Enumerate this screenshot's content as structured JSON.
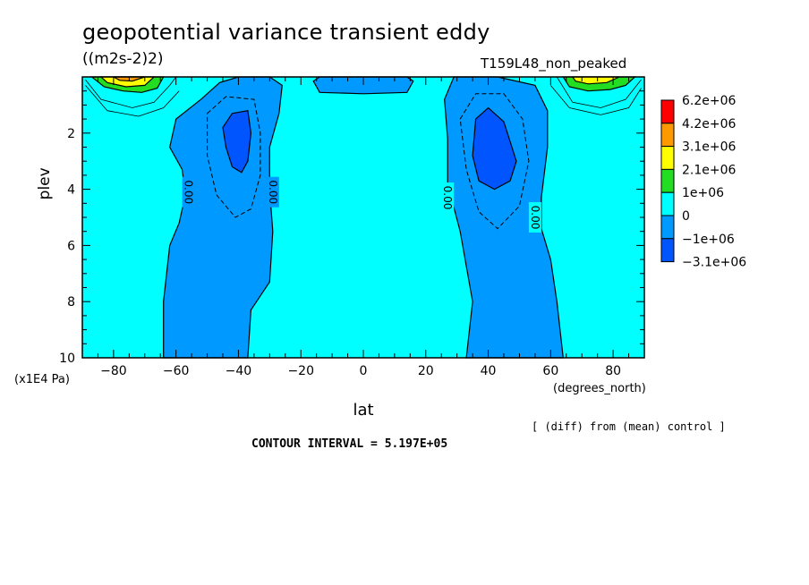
{
  "header": {
    "title": "geopotential variance transient eddy",
    "units": "((m2s-2)2)",
    "run_id": "T159L48_non_peaked"
  },
  "footer": {
    "diff_note": "[ (diff) from (mean) control ]",
    "contour_interval": "CONTOUR INTERVAL = 5.197E+05"
  },
  "chart_data": {
    "type": "heatmap",
    "xlabel": "lat",
    "xunit": "(degrees_north)",
    "ylabel": "plev",
    "yunit": "(x1E4 Pa)",
    "xlim": [
      -90,
      90
    ],
    "ylim": [
      10,
      0
    ],
    "xticks": [
      -80,
      -60,
      -40,
      -20,
      0,
      20,
      40,
      60,
      80
    ],
    "xticklabels": [
      "−80",
      "−60",
      "−40",
      "−20",
      "0",
      "20",
      "40",
      "60",
      "80"
    ],
    "yticks": [
      2,
      4,
      6,
      8,
      10
    ],
    "yticklabels": [
      "2",
      "4",
      "6",
      "8",
      "10"
    ],
    "contour_labels": [
      {
        "text": "0.00",
        "lat": -56,
        "plev": 4.1
      },
      {
        "text": "0.00",
        "lat": -29,
        "plev": 4.1
      },
      {
        "text": "0.00",
        "lat": 27,
        "plev": 4.3
      },
      {
        "text": "0.00",
        "lat": 55,
        "plev": 5.0
      }
    ],
    "colorbar": {
      "levels": [
        "6.2e+06",
        "4.2e+06",
        "3.1e+06",
        "2.1e+06",
        "1e+06",
        "0",
        "−1e+06",
        "−3.1e+06"
      ],
      "colors": [
        "#ff0000",
        "#ff9900",
        "#ffff00",
        "#22dd22",
        "#00ffff",
        "#0099ff",
        "#0055ff"
      ]
    },
    "regions": [
      {
        "name": "negative-band-south",
        "fill": "#0099ff",
        "level": "below 0",
        "outline": [
          [
            -64,
            10
          ],
          [
            -64,
            8
          ],
          [
            -62,
            6
          ],
          [
            -59,
            5.2
          ],
          [
            -57,
            4.2
          ],
          [
            -58,
            3.3
          ],
          [
            -62,
            2.5
          ],
          [
            -60,
            1.5
          ],
          [
            -52,
            0.8
          ],
          [
            -46,
            0.2
          ],
          [
            -40,
            0
          ],
          [
            -30,
            0
          ],
          [
            -26,
            0.3
          ],
          [
            -27,
            1.3
          ],
          [
            -30,
            2.5
          ],
          [
            -30,
            4
          ],
          [
            -29,
            5.5
          ],
          [
            -30,
            7.3
          ],
          [
            -36,
            8.3
          ],
          [
            -37,
            10
          ]
        ]
      },
      {
        "name": "negative-band-north",
        "fill": "#0099ff",
        "level": "below 0",
        "outline": [
          [
            33,
            10
          ],
          [
            35,
            8
          ],
          [
            31,
            5.5
          ],
          [
            27,
            3.8
          ],
          [
            27,
            2.2
          ],
          [
            26,
            0.8
          ],
          [
            29,
            0
          ],
          [
            43,
            0
          ],
          [
            55,
            0.3
          ],
          [
            59,
            1.2
          ],
          [
            59,
            2.5
          ],
          [
            57,
            4.3
          ],
          [
            57,
            5.4
          ],
          [
            60,
            6.5
          ],
          [
            62,
            8
          ],
          [
            64,
            10
          ]
        ]
      },
      {
        "name": "negative-patch-equator",
        "fill": "#0099ff",
        "level": "below 0",
        "outline": [
          [
            -16,
            0.15
          ],
          [
            -14,
            0
          ],
          [
            14,
            0
          ],
          [
            16,
            0.15
          ],
          [
            14,
            0.55
          ],
          [
            0,
            0.6
          ],
          [
            -14,
            0.55
          ]
        ]
      },
      {
        "name": "minimum-core-south",
        "fill": "#0055ff",
        "level": "below -1e+06",
        "outline": [
          [
            -42,
            1.3
          ],
          [
            -37,
            1.2
          ],
          [
            -36,
            2
          ],
          [
            -37,
            3
          ],
          [
            -39,
            3.4
          ],
          [
            -42,
            3.2
          ],
          [
            -44,
            2.5
          ],
          [
            -45,
            1.8
          ]
        ]
      },
      {
        "name": "minimum-core-north",
        "fill": "#0055ff",
        "level": "below -1e+06",
        "outline": [
          [
            36,
            1.5
          ],
          [
            40,
            1.1
          ],
          [
            45,
            1.6
          ],
          [
            49,
            3
          ],
          [
            47,
            3.7
          ],
          [
            42,
            4
          ],
          [
            37,
            3.7
          ],
          [
            35,
            2.8
          ]
        ]
      },
      {
        "name": "polar-maximum-south",
        "fill": "#22dd22",
        "level": "1e+06 to 2.1e+06",
        "outline": [
          [
            -87,
            0
          ],
          [
            -64,
            0
          ],
          [
            -66,
            0.4
          ],
          [
            -71,
            0.55
          ],
          [
            -77,
            0.5
          ],
          [
            -83,
            0.35
          ]
        ]
      },
      {
        "name": "polar-maximum-south-inner",
        "fill": "#ffff00",
        "level": "2.1e+06 to 3.1e+06",
        "outline": [
          [
            -84,
            0
          ],
          [
            -67,
            0
          ],
          [
            -70,
            0.3
          ],
          [
            -76,
            0.35
          ],
          [
            -82,
            0.2
          ]
        ]
      },
      {
        "name": "polar-maximum-south-core",
        "fill": "#ff9900",
        "level": "3.1e+06 to 4.2e+06",
        "outline": [
          [
            -80,
            0
          ],
          [
            -70,
            0
          ],
          [
            -74,
            0.15
          ],
          [
            -78,
            0.12
          ]
        ]
      },
      {
        "name": "polar-maximum-north",
        "fill": "#22dd22",
        "level": "1e+06 to 2.1e+06",
        "outline": [
          [
            64,
            0
          ],
          [
            87,
            0
          ],
          [
            84,
            0.3
          ],
          [
            79,
            0.45
          ],
          [
            72,
            0.5
          ],
          [
            66,
            0.35
          ]
        ]
      },
      {
        "name": "polar-maximum-north-core",
        "fill": "#ffff00",
        "level": "2.1e+06 to 3.1e+06",
        "outline": [
          [
            67,
            0
          ],
          [
            82,
            0
          ],
          [
            78,
            0.2
          ],
          [
            72,
            0.25
          ],
          [
            68,
            0.15
          ]
        ]
      }
    ],
    "dashed_contours": [
      {
        "name": "dashed-contour-south",
        "points": [
          [
            -50,
            1.3
          ],
          [
            -44,
            0.7
          ],
          [
            -35,
            0.8
          ],
          [
            -33,
            2
          ],
          [
            -33,
            3.5
          ],
          [
            -36,
            4.7
          ],
          [
            -41,
            5
          ],
          [
            -47,
            4.2
          ],
          [
            -50,
            2.8
          ]
        ]
      },
      {
        "name": "dashed-contour-north",
        "points": [
          [
            31,
            1.5
          ],
          [
            36,
            0.6
          ],
          [
            45,
            0.6
          ],
          [
            51,
            1.5
          ],
          [
            53,
            3
          ],
          [
            50,
            4.6
          ],
          [
            43,
            5.4
          ],
          [
            37,
            4.8
          ],
          [
            33,
            3.3
          ]
        ]
      }
    ],
    "thin_contours": [
      {
        "name": "thin-contour-south-1",
        "points": [
          [
            -89,
            0.1
          ],
          [
            -84,
            0.8
          ],
          [
            -74,
            1.1
          ],
          [
            -67,
            0.9
          ],
          [
            -62,
            0.3
          ],
          [
            -60,
            0
          ]
        ]
      },
      {
        "name": "thin-contour-south-2",
        "points": [
          [
            -89,
            0.3
          ],
          [
            -82,
            1.2
          ],
          [
            -72,
            1.4
          ],
          [
            -64,
            1.1
          ],
          [
            -59,
            0.5
          ]
        ]
      },
      {
        "name": "thin-contour-north-1",
        "points": [
          [
            62,
            0
          ],
          [
            67,
            0.9
          ],
          [
            76,
            1.1
          ],
          [
            84,
            0.8
          ],
          [
            89,
            0.1
          ]
        ]
      },
      {
        "name": "thin-contour-north-2",
        "points": [
          [
            60,
            0.3
          ],
          [
            66,
            1.1
          ],
          [
            76,
            1.35
          ],
          [
            85,
            1.1
          ],
          [
            89,
            0.4
          ]
        ]
      }
    ]
  }
}
